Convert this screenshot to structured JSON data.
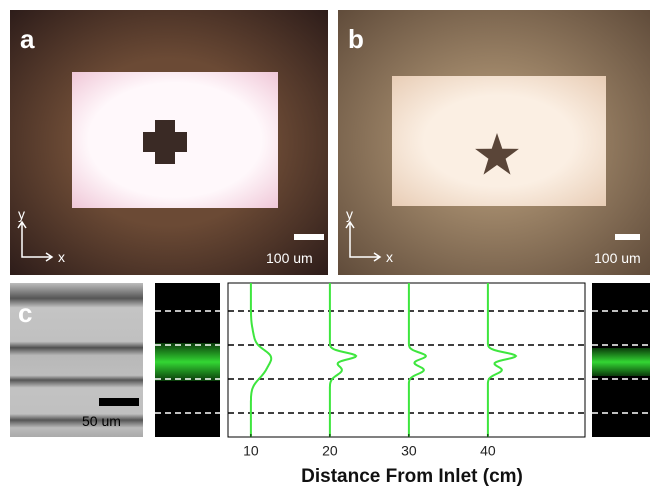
{
  "panels": {
    "a": {
      "label": "a",
      "axis_y": "y",
      "axis_x": "x",
      "scale_bar": "100 um"
    },
    "b": {
      "label": "b",
      "axis_y": "y",
      "axis_x": "x",
      "scale_bar": "100 um"
    },
    "c": {
      "label": "c",
      "scale_bar": "50 um"
    }
  },
  "chart_data": {
    "type": "line",
    "x_label": "Distance From Inlet (cm)",
    "xlim": [
      7.1,
      52.3
    ],
    "xticks": [
      10,
      20,
      30,
      40
    ]
  }
}
